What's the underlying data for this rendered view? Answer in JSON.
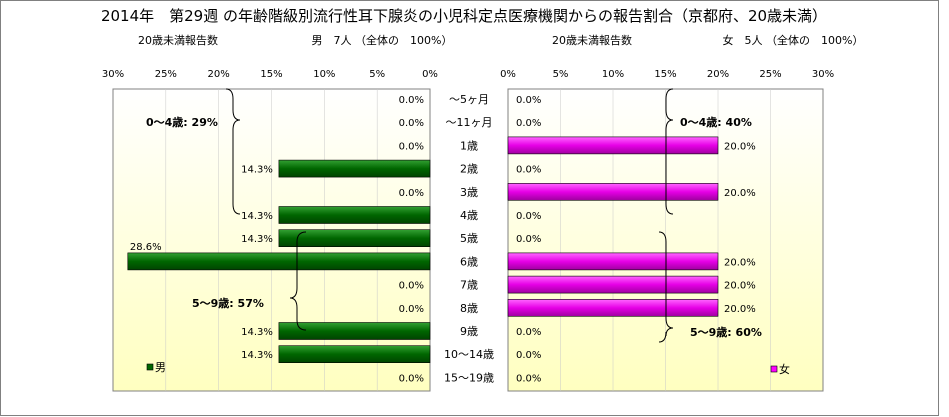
{
  "title": "2014年　第29週 の年齢階級別流行性耳下腺炎の小児科定点医療機関からの報告割合（京都府、20歳未満）",
  "colors": {
    "male": "#006600",
    "female": "#ff00ff",
    "gradient_top": "#ffffff",
    "gradient_bottom": "#ffffc0",
    "gridline": "#c8c8c8"
  },
  "chart_data": [
    {
      "type": "bar",
      "orientation": "horizontal",
      "direction": "right-to-left",
      "header_left": "20歳未満報告数",
      "header_right": "男　7人 （全体の　100%）",
      "legend": "男",
      "categories": [
        "～5ヶ月",
        "～11ヶ月",
        "1歳",
        "2歳",
        "3歳",
        "4歳",
        "5歳",
        "6歳",
        "7歳",
        "8歳",
        "9歳",
        "10～14歳",
        "15～19歳"
      ],
      "values": [
        0.0,
        0.0,
        0.0,
        14.3,
        0.0,
        14.3,
        14.3,
        28.6,
        0.0,
        0.0,
        14.3,
        14.3,
        0.0
      ],
      "value_labels": [
        "0.0%",
        "0.0%",
        "0.0%",
        "14.3%",
        "0.0%",
        "14.3%",
        "14.3%",
        "28.6%",
        "0.0%",
        "0.0%",
        "14.3%",
        "14.3%",
        "0.0%"
      ],
      "xlim": [
        0,
        30
      ],
      "ticks": [
        "30%",
        "25%",
        "20%",
        "15%",
        "10%",
        "5%",
        "0%"
      ],
      "annotations": [
        "0～4歳: 29%",
        "5～9歳: 57%"
      ]
    },
    {
      "type": "bar",
      "orientation": "horizontal",
      "direction": "left-to-right",
      "header_left": "20歳未満報告数",
      "header_right": "女　5人 （全体の　100%）",
      "legend": "女",
      "categories": [
        "～5ヶ月",
        "～11ヶ月",
        "1歳",
        "2歳",
        "3歳",
        "4歳",
        "5歳",
        "6歳",
        "7歳",
        "8歳",
        "9歳",
        "10～14歳",
        "15～19歳"
      ],
      "values": [
        0.0,
        0.0,
        20.0,
        0.0,
        20.0,
        0.0,
        0.0,
        20.0,
        20.0,
        20.0,
        0.0,
        0.0,
        0.0
      ],
      "value_labels": [
        "0.0%",
        "0.0%",
        "20.0%",
        "0.0%",
        "20.0%",
        "0.0%",
        "0.0%",
        "20.0%",
        "20.0%",
        "20.0%",
        "0.0%",
        "0.0%",
        "0.0%"
      ],
      "xlim": [
        0,
        30
      ],
      "ticks": [
        "0%",
        "5%",
        "10%",
        "15%",
        "20%",
        "25%",
        "30%"
      ],
      "annotations": [
        "0～4歳: 40%",
        "5～9歳: 60%"
      ]
    }
  ]
}
